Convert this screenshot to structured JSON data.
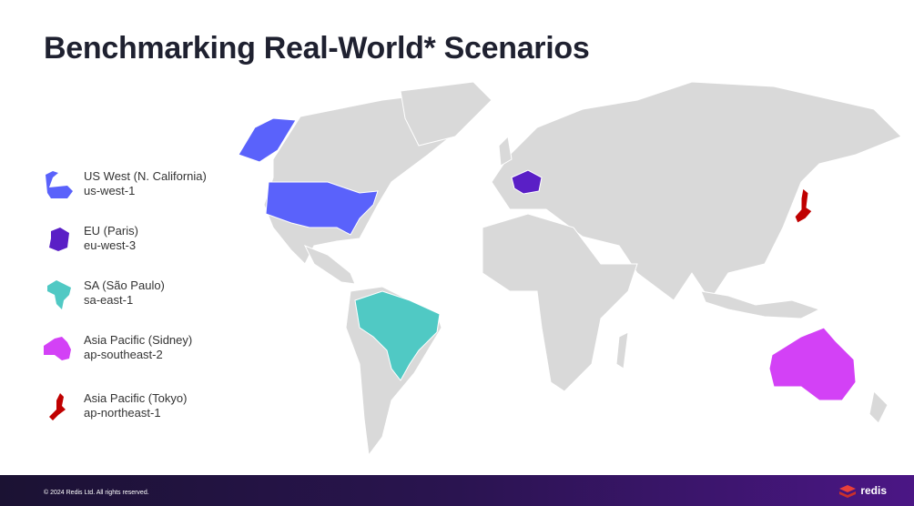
{
  "title": "Benchmarking Real-World* Scenarios",
  "legend": [
    {
      "name": "US West (N. California)",
      "code": "us-west-1",
      "color": "#5a62fb"
    },
    {
      "name": "EU (Paris)",
      "code": "eu-west-3",
      "color": "#5a1fc6"
    },
    {
      "name": "SA (São Paulo)",
      "code": "sa-east-1",
      "color": "#50c9c4"
    },
    {
      "name": "Asia Pacific (Sidney)",
      "code": "ap-southeast-2",
      "color": "#d341f6"
    },
    {
      "name": "Asia Pacific (Tokyo)",
      "code": "ap-northeast-1",
      "color": "#c00000"
    }
  ],
  "footer": {
    "copyright": "© 2024 Redis Ltd. All rights reserved.",
    "logo": "redis"
  }
}
